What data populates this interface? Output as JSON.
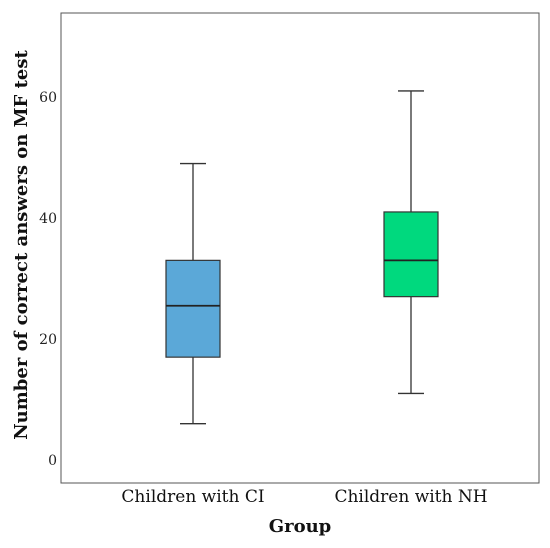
{
  "chart_data": {
    "type": "boxplot",
    "xlabel": "Group",
    "ylabel": "Number of correct answers on MF test",
    "ylim": [
      -3,
      74
    ],
    "yticks": [
      0,
      20,
      40,
      60
    ],
    "grid": false,
    "categories": [
      "Children with CI",
      "Children with NH"
    ],
    "boxes": [
      {
        "category": "Children with CI",
        "whisker_low": 6,
        "q1": 17,
        "median": 25.5,
        "q3": 33,
        "whisker_high": 49,
        "color": "#5ba8d8"
      },
      {
        "category": "Children with NH",
        "whisker_low": 11,
        "q1": 27,
        "median": 33,
        "q3": 41,
        "whisker_high": 61,
        "color": "#00d97e"
      }
    ]
  }
}
